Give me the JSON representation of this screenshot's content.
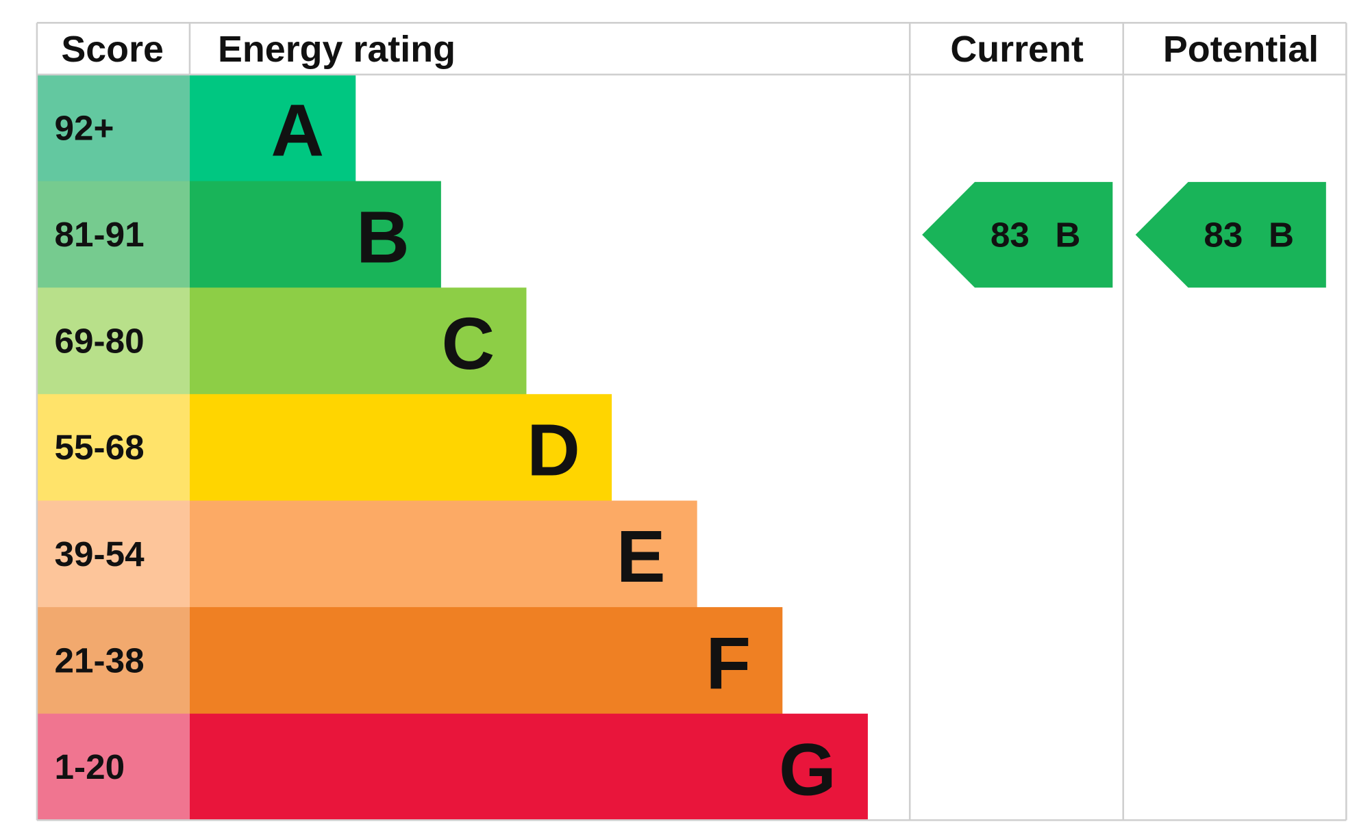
{
  "header": {
    "score": "Score",
    "energy_rating": "Energy rating",
    "current": "Current",
    "potential": "Potential"
  },
  "rows": [
    {
      "score": "92+",
      "band": "A",
      "color": "#00c781",
      "score_color": "#63c8a0"
    },
    {
      "score": "81-91",
      "band": "B",
      "color": "#19b459",
      "score_color": "#76cb8f"
    },
    {
      "score": "69-80",
      "band": "C",
      "color": "#8dce46",
      "score_color": "#b8e08a"
    },
    {
      "score": "55-68",
      "band": "D",
      "color": "#ffd500",
      "score_color": "#ffe36a"
    },
    {
      "score": "39-54",
      "band": "E",
      "color": "#fcaa65",
      "score_color": "#fdc59a"
    },
    {
      "score": "21-38",
      "band": "F",
      "color": "#ef8023",
      "score_color": "#f2a96e"
    },
    {
      "score": "1-20",
      "band": "G",
      "color": "#e9153b",
      "score_color": "#f07590"
    }
  ],
  "current": {
    "value": 83,
    "band": "B",
    "color": "#19b459"
  },
  "potential": {
    "value": 83,
    "band": "B",
    "color": "#19b459"
  }
}
